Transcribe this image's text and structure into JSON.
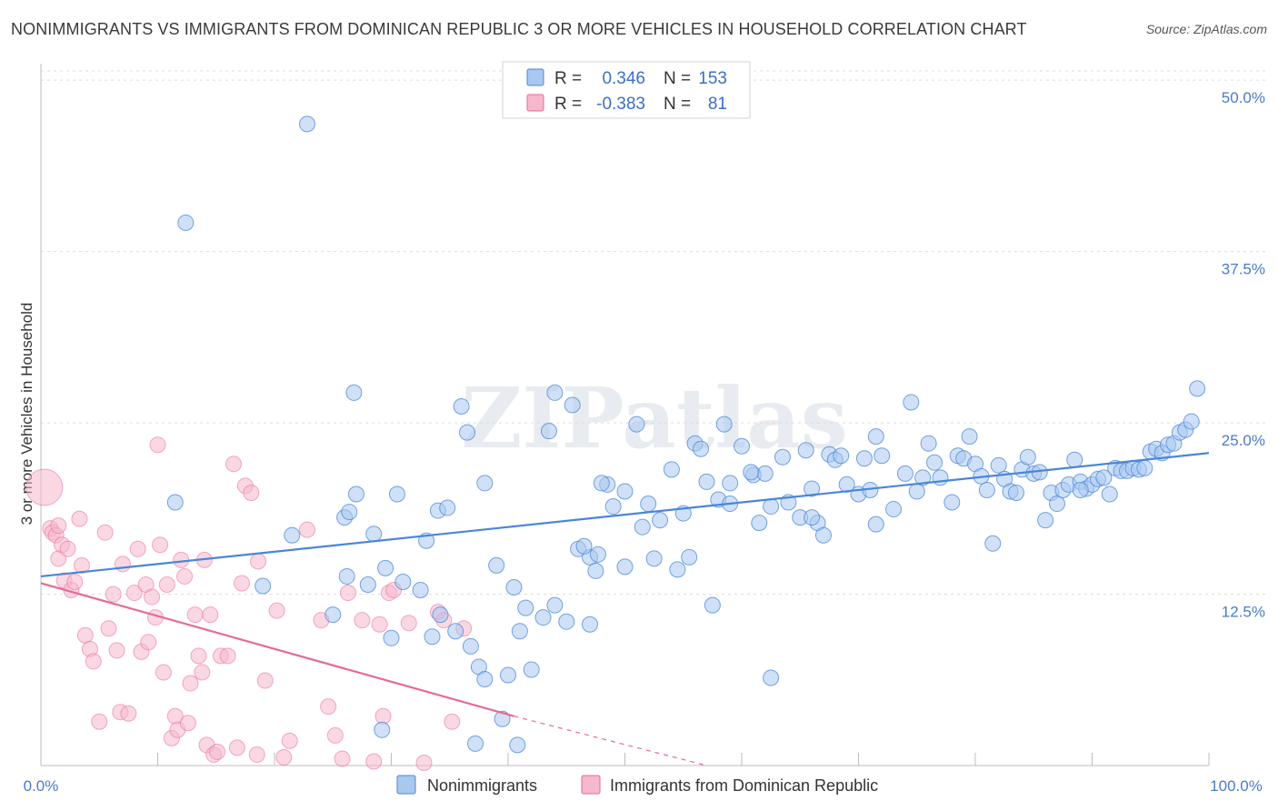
{
  "title": "NONIMMIGRANTS VS IMMIGRANTS FROM DOMINICAN REPUBLIC 3 OR MORE VEHICLES IN HOUSEHOLD CORRELATION CHART",
  "source": "Source: ZipAtlas.com",
  "watermark": "ZIPatlas",
  "colors": {
    "blue": "#4a86d8",
    "blue_fill": "#a9c8f0",
    "pink": "#e76a96",
    "pink_fill": "#f5b8cc",
    "tick_text": "#4a7cc9"
  },
  "legend": {
    "rows": [
      {
        "r_label": "R =",
        "r_value": "0.346",
        "n_label": "N =",
        "n_value": "153"
      },
      {
        "r_label": "R =",
        "r_value": "-0.383",
        "n_label": "N =",
        "n_value": "81"
      }
    ]
  },
  "bottom_legend": [
    "Nonimmigrants",
    "Immigrants from Dominican Republic"
  ],
  "chart_data": {
    "type": "scatter",
    "title": "NONIMMIGRANTS VS IMMIGRANTS FROM DOMINICAN REPUBLIC 3 OR MORE VEHICLES IN HOUSEHOLD CORRELATION CHART",
    "xlabel": "",
    "ylabel": "3 or more Vehicles in Household",
    "xlim": [
      0,
      100
    ],
    "ylim": [
      0,
      52
    ],
    "x_tick_labels": [
      "0.0%",
      "100.0%"
    ],
    "y_ticks": [
      12.5,
      25.0,
      37.5,
      50.0
    ],
    "y_tick_labels": [
      "12.5%",
      "25.0%",
      "37.5%",
      "50.0%"
    ],
    "grid": true,
    "series": [
      {
        "name": "Nonimmigrants",
        "trend": {
          "x": [
            0,
            100
          ],
          "y": [
            13.8,
            22.8
          ]
        },
        "points": [
          [
            22.8,
            46.8
          ],
          [
            12.4,
            39.6
          ],
          [
            11.5,
            19.2
          ],
          [
            21.5,
            16.8
          ],
          [
            26.2,
            13.8
          ],
          [
            26.0,
            18.1
          ],
          [
            26.4,
            18.5
          ],
          [
            27.0,
            19.8
          ],
          [
            26.8,
            27.2
          ],
          [
            28.5,
            16.9
          ],
          [
            28.0,
            13.2
          ],
          [
            29.5,
            14.4
          ],
          [
            31.0,
            13.4
          ],
          [
            32.5,
            12.8
          ],
          [
            30.5,
            19.8
          ],
          [
            33.0,
            16.4
          ],
          [
            34.0,
            18.6
          ],
          [
            34.8,
            18.8
          ],
          [
            36.0,
            26.2
          ],
          [
            36.5,
            24.3
          ],
          [
            38.0,
            20.6
          ],
          [
            39.0,
            14.6
          ],
          [
            40.5,
            13.0
          ],
          [
            41.5,
            11.5
          ],
          [
            43.0,
            10.8
          ],
          [
            43.5,
            24.4
          ],
          [
            44.0,
            27.2
          ],
          [
            45.5,
            26.3
          ],
          [
            46.0,
            15.8
          ],
          [
            47.0,
            15.2
          ],
          [
            45.0,
            10.5
          ],
          [
            46.5,
            16.0
          ],
          [
            47.5,
            14.2
          ],
          [
            48.5,
            20.5
          ],
          [
            49.0,
            18.9
          ],
          [
            50.0,
            20.0
          ],
          [
            51.0,
            24.9
          ],
          [
            51.5,
            17.4
          ],
          [
            52.0,
            19.1
          ],
          [
            53.0,
            17.9
          ],
          [
            54.0,
            21.6
          ],
          [
            54.5,
            14.3
          ],
          [
            55.0,
            18.4
          ],
          [
            56.0,
            23.5
          ],
          [
            56.5,
            23.1
          ],
          [
            57.0,
            20.7
          ],
          [
            58.0,
            19.4
          ],
          [
            58.5,
            24.9
          ],
          [
            59.0,
            20.6
          ],
          [
            60.0,
            23.3
          ],
          [
            61.0,
            21.2
          ],
          [
            61.5,
            17.7
          ],
          [
            62.0,
            21.3
          ],
          [
            62.5,
            18.9
          ],
          [
            63.5,
            22.5
          ],
          [
            64.0,
            19.2
          ],
          [
            65.0,
            18.1
          ],
          [
            65.5,
            23.0
          ],
          [
            66.0,
            20.2
          ],
          [
            66.5,
            17.7
          ],
          [
            67.5,
            22.7
          ],
          [
            68.0,
            22.3
          ],
          [
            68.5,
            22.6
          ],
          [
            69.0,
            20.5
          ],
          [
            70.0,
            19.8
          ],
          [
            70.5,
            22.4
          ],
          [
            71.0,
            20.1
          ],
          [
            71.5,
            24.0
          ],
          [
            71.5,
            17.6
          ],
          [
            72.0,
            22.6
          ],
          [
            73.0,
            18.7
          ],
          [
            74.0,
            21.3
          ],
          [
            74.5,
            26.5
          ],
          [
            75.0,
            20.0
          ],
          [
            75.5,
            21.0
          ],
          [
            76.0,
            23.5
          ],
          [
            76.5,
            22.1
          ],
          [
            77.0,
            21.0
          ],
          [
            78.0,
            19.2
          ],
          [
            78.5,
            22.6
          ],
          [
            79.0,
            22.4
          ],
          [
            79.5,
            24.0
          ],
          [
            80.0,
            22.0
          ],
          [
            80.5,
            21.1
          ],
          [
            81.0,
            20.1
          ],
          [
            81.5,
            16.2
          ],
          [
            82.0,
            21.9
          ],
          [
            82.5,
            20.9
          ],
          [
            83.0,
            20.0
          ],
          [
            83.5,
            19.9
          ],
          [
            84.0,
            21.6
          ],
          [
            84.5,
            22.5
          ],
          [
            85.0,
            21.3
          ],
          [
            85.5,
            21.4
          ],
          [
            86.0,
            17.9
          ],
          [
            86.5,
            19.9
          ],
          [
            87.0,
            19.1
          ],
          [
            87.5,
            20.1
          ],
          [
            88.0,
            20.5
          ],
          [
            88.5,
            22.3
          ],
          [
            89.0,
            20.7
          ],
          [
            89.5,
            20.2
          ],
          [
            90.0,
            20.5
          ],
          [
            90.5,
            20.9
          ],
          [
            91.0,
            21.0
          ],
          [
            91.5,
            19.8
          ],
          [
            92.0,
            21.7
          ],
          [
            92.5,
            21.5
          ],
          [
            93.0,
            21.5
          ],
          [
            93.5,
            21.7
          ],
          [
            94.0,
            21.6
          ],
          [
            94.5,
            21.7
          ],
          [
            95.0,
            22.9
          ],
          [
            95.5,
            23.1
          ],
          [
            96.0,
            22.8
          ],
          [
            96.5,
            23.4
          ],
          [
            97.0,
            23.5
          ],
          [
            97.5,
            24.3
          ],
          [
            98.0,
            24.5
          ],
          [
            98.5,
            25.1
          ],
          [
            99.0,
            27.5
          ],
          [
            59.0,
            19.1
          ],
          [
            48.0,
            20.6
          ],
          [
            67.0,
            16.8
          ],
          [
            30.0,
            9.3
          ],
          [
            33.5,
            9.4
          ],
          [
            35.5,
            9.8
          ],
          [
            37.5,
            7.2
          ],
          [
            38.0,
            6.3
          ],
          [
            39.5,
            3.4
          ],
          [
            40.0,
            6.6
          ],
          [
            41.0,
            9.8
          ],
          [
            42.0,
            7.0
          ],
          [
            44.0,
            11.7
          ],
          [
            47.0,
            10.3
          ],
          [
            50.0,
            14.5
          ],
          [
            52.5,
            15.1
          ],
          [
            55.5,
            15.2
          ],
          [
            57.5,
            11.7
          ],
          [
            62.5,
            6.4
          ],
          [
            37.2,
            1.6
          ],
          [
            29.2,
            2.6
          ],
          [
            40.8,
            1.5
          ],
          [
            47.7,
            15.4
          ],
          [
            34.2,
            11.0
          ],
          [
            36.8,
            8.7
          ],
          [
            19.0,
            13.1
          ],
          [
            25.0,
            11.0
          ],
          [
            60.8,
            21.4
          ],
          [
            66.0,
            18.1
          ],
          [
            89.0,
            20.1
          ]
        ]
      },
      {
        "name": "Immigrants from Dominican Republic",
        "trend": {
          "x": [
            0,
            40.5
          ],
          "y": [
            13.3,
            3.6
          ]
        },
        "trend_dashed": {
          "x": [
            40.5,
            57
          ],
          "y": [
            3.6,
            0
          ]
        },
        "points": [
          [
            0.3,
            20.3
          ],
          [
            0.8,
            17.3
          ],
          [
            1.0,
            17.0
          ],
          [
            1.3,
            16.8
          ],
          [
            1.5,
            15.1
          ],
          [
            1.8,
            16.1
          ],
          [
            2.0,
            13.5
          ],
          [
            2.3,
            15.8
          ],
          [
            2.6,
            12.8
          ],
          [
            2.9,
            13.4
          ],
          [
            3.3,
            18.0
          ],
          [
            3.5,
            14.6
          ],
          [
            3.8,
            9.5
          ],
          [
            4.2,
            8.5
          ],
          [
            4.5,
            7.6
          ],
          [
            5.0,
            3.2
          ],
          [
            5.5,
            17.0
          ],
          [
            5.8,
            10.0
          ],
          [
            6.2,
            12.5
          ],
          [
            6.5,
            8.4
          ],
          [
            6.8,
            3.9
          ],
          [
            7.0,
            14.7
          ],
          [
            7.5,
            3.8
          ],
          [
            8.0,
            12.6
          ],
          [
            8.3,
            15.8
          ],
          [
            8.6,
            8.3
          ],
          [
            9.0,
            13.2
          ],
          [
            9.2,
            9.0
          ],
          [
            9.5,
            12.3
          ],
          [
            9.8,
            10.8
          ],
          [
            10.2,
            16.1
          ],
          [
            10.5,
            6.8
          ],
          [
            10.8,
            13.2
          ],
          [
            11.2,
            2.0
          ],
          [
            11.5,
            3.6
          ],
          [
            11.7,
            2.6
          ],
          [
            12.0,
            15.0
          ],
          [
            12.3,
            13.8
          ],
          [
            12.6,
            3.1
          ],
          [
            12.8,
            6.0
          ],
          [
            13.2,
            11.0
          ],
          [
            13.5,
            8.0
          ],
          [
            13.8,
            6.8
          ],
          [
            14.2,
            1.5
          ],
          [
            14.5,
            11.0
          ],
          [
            14.8,
            0.8
          ],
          [
            15.1,
            1.0
          ],
          [
            15.4,
            8.0
          ],
          [
            16.0,
            8.0
          ],
          [
            16.5,
            22.0
          ],
          [
            16.8,
            1.3
          ],
          [
            17.2,
            13.3
          ],
          [
            17.5,
            20.4
          ],
          [
            18.0,
            19.9
          ],
          [
            18.5,
            0.8
          ],
          [
            19.2,
            6.2
          ],
          [
            20.2,
            11.3
          ],
          [
            20.8,
            0.6
          ],
          [
            21.3,
            1.8
          ],
          [
            22.8,
            17.2
          ],
          [
            24.0,
            10.6
          ],
          [
            24.6,
            4.3
          ],
          [
            25.2,
            2.2
          ],
          [
            25.8,
            0.5
          ],
          [
            26.3,
            12.6
          ],
          [
            27.5,
            10.6
          ],
          [
            28.5,
            0.3
          ],
          [
            29.0,
            10.3
          ],
          [
            29.3,
            3.6
          ],
          [
            29.8,
            12.6
          ],
          [
            30.2,
            12.8
          ],
          [
            31.5,
            10.4
          ],
          [
            32.8,
            0.2
          ],
          [
            34.0,
            11.2
          ],
          [
            35.2,
            3.2
          ],
          [
            34.5,
            10.6
          ],
          [
            36.2,
            10.0
          ],
          [
            14.0,
            15.0
          ],
          [
            10.0,
            23.4
          ],
          [
            1.5,
            17.5
          ],
          [
            18.6,
            14.9
          ]
        ]
      }
    ]
  }
}
